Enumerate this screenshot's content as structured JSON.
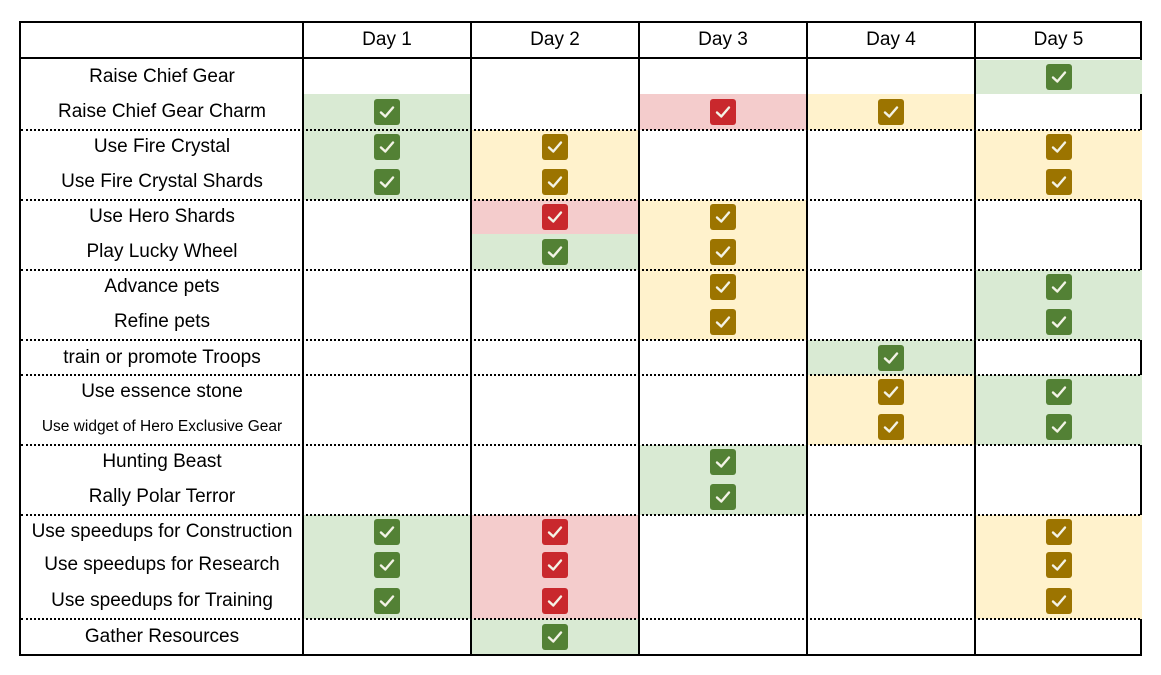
{
  "header": {
    "days": [
      "Day 1",
      "Day 2",
      "Day 3",
      "Day 4",
      "Day 5"
    ]
  },
  "colors": {
    "green_bg": "#d9ead3",
    "green_check": "#538135",
    "yellow_bg": "#fff2cc",
    "yellow_check": "#9c7400",
    "red_bg": "#f4cccc",
    "red_check": "#c9282d"
  },
  "icon": "checkbox-checked-icon",
  "groups": [
    {
      "rows": [
        {
          "task": "Raise Chief Gear",
          "days": [
            null,
            null,
            null,
            null,
            "green"
          ]
        },
        {
          "task": "Raise Chief Gear Charm",
          "days": [
            "green",
            null,
            "red",
            "yellow",
            null
          ]
        }
      ]
    },
    {
      "rows": [
        {
          "task": "Use Fire Crystal",
          "days": [
            "green",
            "yellow",
            null,
            null,
            "yellow"
          ]
        },
        {
          "task": "Use Fire Crystal Shards",
          "days": [
            "green",
            "yellow",
            null,
            null,
            "yellow"
          ]
        }
      ]
    },
    {
      "rows": [
        {
          "task": "Use Hero Shards",
          "days": [
            null,
            "red",
            "yellow",
            null,
            null
          ]
        },
        {
          "task": "Play Lucky Wheel",
          "days": [
            null,
            "green",
            "yellow",
            null,
            null
          ]
        }
      ]
    },
    {
      "rows": [
        {
          "task": "Advance pets",
          "days": [
            null,
            null,
            "yellow",
            null,
            "green"
          ]
        },
        {
          "task": "Refine pets",
          "days": [
            null,
            null,
            "yellow",
            null,
            "green"
          ]
        }
      ]
    },
    {
      "rows": [
        {
          "task": "train or promote Troops",
          "days": [
            null,
            null,
            null,
            "green",
            null
          ]
        }
      ]
    },
    {
      "rows": [
        {
          "task": "Use essence stone",
          "days": [
            null,
            null,
            null,
            "yellow",
            "green"
          ]
        },
        {
          "task": "Use widget of Hero Exclusive  Gear",
          "days": [
            null,
            null,
            null,
            "yellow",
            "green"
          ]
        }
      ]
    },
    {
      "rows": [
        {
          "task": "Hunting Beast",
          "days": [
            null,
            null,
            "green",
            null,
            null
          ]
        },
        {
          "task": "Rally Polar Terror",
          "days": [
            null,
            null,
            "green",
            null,
            null
          ]
        }
      ]
    },
    {
      "rows": [
        {
          "task": "Use speedups for Construction",
          "days": [
            "green",
            "red",
            null,
            null,
            "yellow"
          ]
        },
        {
          "task": "Use speedups for Research",
          "days": [
            "green",
            "red",
            null,
            null,
            "yellow"
          ]
        },
        {
          "task": "Use speedups for Training",
          "days": [
            "green",
            "red",
            null,
            null,
            "yellow"
          ]
        }
      ]
    },
    {
      "rows": [
        {
          "task": "Gather Resources",
          "days": [
            null,
            "green",
            null,
            null,
            null
          ]
        }
      ]
    }
  ]
}
